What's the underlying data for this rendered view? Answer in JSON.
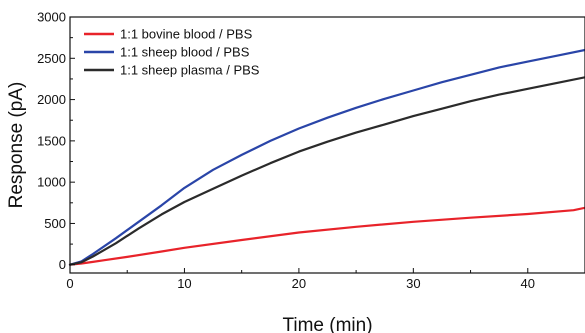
{
  "chart_data": {
    "type": "line",
    "title": "",
    "xlabel": "Time (min)",
    "ylabel": "Response (pA)",
    "xlim": [
      0,
      45
    ],
    "ylim": [
      -100,
      3000
    ],
    "xticks": [
      0,
      10,
      20,
      30,
      40
    ],
    "yticks": [
      0,
      500,
      1000,
      1500,
      2000,
      2500,
      3000
    ],
    "grid": false,
    "legend_position": "top-left",
    "series": [
      {
        "name": "1:1 bovine blood / PBS",
        "color": "#e8232a",
        "x": [
          0,
          1,
          2,
          3,
          5,
          8,
          10,
          15,
          20,
          25,
          30,
          35,
          40,
          44,
          45
        ],
        "y": [
          0,
          15,
          35,
          55,
          95,
          160,
          205,
          300,
          390,
          460,
          520,
          570,
          615,
          660,
          690
        ]
      },
      {
        "name": "1:1 sheep blood / PBS",
        "color": "#2a45a8",
        "x": [
          0,
          1,
          2,
          4,
          6,
          8,
          10,
          12.5,
          15,
          17.5,
          20,
          22.5,
          25,
          27.5,
          30,
          32.5,
          35,
          37.5,
          40,
          42.5,
          45
        ],
        "y": [
          0,
          40,
          130,
          320,
          520,
          720,
          930,
          1150,
          1330,
          1500,
          1650,
          1780,
          1900,
          2010,
          2110,
          2210,
          2300,
          2390,
          2460,
          2530,
          2600
        ]
      },
      {
        "name": "1:1 sheep plasma / PBS",
        "color": "#2b2b2b",
        "x": [
          0,
          1,
          2,
          4,
          6,
          8,
          10,
          12.5,
          15,
          17.5,
          20,
          22.5,
          25,
          27.5,
          30,
          32.5,
          35,
          37.5,
          40,
          42.5,
          45
        ],
        "y": [
          0,
          30,
          100,
          260,
          440,
          610,
          760,
          920,
          1080,
          1230,
          1370,
          1490,
          1600,
          1700,
          1800,
          1890,
          1980,
          2060,
          2130,
          2200,
          2270
        ]
      }
    ]
  }
}
